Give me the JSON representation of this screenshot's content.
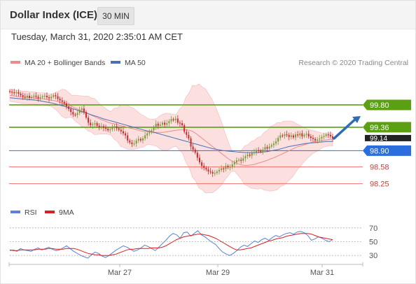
{
  "header": {
    "title": "Dollar Index (ICE)",
    "interval": "30 MIN",
    "timestamp": "Tuesday, March 31, 2020 2:35:01 AM CET"
  },
  "legend": {
    "ma20": "MA 20 + Bollinger Bands",
    "ma50": "MA 50",
    "credit": "Research © 2020 Trading Central",
    "rsi": "RSI",
    "ma9": "9MA"
  },
  "colors": {
    "up": "#7a9a3a",
    "down": "#cc2a2a",
    "ma20": "#f08a8a",
    "ma50": "#4a6fb3",
    "band": "#fbd6d6",
    "green_level": "#5aa012",
    "blue_level": "#2b6fde",
    "red_level": "#f07070",
    "last_price": "#222222",
    "arrow": "#2e6db5",
    "rsi": "#5b82d8",
    "ma9": "#d91f1f"
  },
  "chart_data": [
    {
      "type": "candlestick",
      "ylim": [
        97.9,
        100.35
      ],
      "price_levels": [
        {
          "label": "99.80",
          "value": 99.8,
          "kind": "resistance",
          "color": "#5aa012"
        },
        {
          "label": "99.36",
          "value": 99.36,
          "kind": "resistance",
          "color": "#5aa012"
        },
        {
          "label": "99.14",
          "value": 99.14,
          "kind": "last",
          "color": "#222222"
        },
        {
          "label": "98.90",
          "value": 98.9,
          "kind": "pivot",
          "color": "#2b6fde"
        },
        {
          "label": "98.58",
          "value": 98.58,
          "kind": "support",
          "color": "#f07070"
        },
        {
          "label": "98.25",
          "value": 98.25,
          "kind": "support",
          "color": "#f07070"
        }
      ],
      "close": [
        100.06,
        100.05,
        100.03,
        100.05,
        100.02,
        99.99,
        99.96,
        99.95,
        99.98,
        99.94,
        99.96,
        99.98,
        99.96,
        99.93,
        99.95,
        99.97,
        99.98,
        99.95,
        99.93,
        99.96,
        99.99,
        99.97,
        99.92,
        99.89,
        99.86,
        99.83,
        99.77,
        99.72,
        99.66,
        99.61,
        99.6,
        99.64,
        99.7,
        99.73,
        99.66,
        99.55,
        99.45,
        99.4,
        99.42,
        99.44,
        99.39,
        99.36,
        99.38,
        99.35,
        99.33,
        99.3,
        99.32,
        99.35,
        99.38,
        99.34,
        99.31,
        99.28,
        99.24,
        99.2,
        99.1,
        99.06,
        99.03,
        99.04,
        99.1,
        99.13,
        99.1,
        99.14,
        99.2,
        99.24,
        99.26,
        99.3,
        99.35,
        99.43,
        99.39,
        99.41,
        99.45,
        99.41,
        99.44,
        99.48,
        99.52,
        99.5,
        99.53,
        99.45,
        99.44,
        99.4,
        99.27,
        99.21,
        99.14,
        98.98,
        98.92,
        98.86,
        98.76,
        98.67,
        98.6,
        98.56,
        98.53,
        98.49,
        98.48,
        98.45,
        98.46,
        98.49,
        98.52,
        98.55,
        98.54,
        98.6,
        98.57,
        98.58,
        98.63,
        98.67,
        98.71,
        98.72,
        98.7,
        98.75,
        98.79,
        98.82,
        98.8,
        98.85,
        98.87,
        98.91,
        98.9,
        98.88,
        98.92,
        98.97,
        98.94,
        98.98,
        99.01,
        99.04,
        99.08,
        99.15,
        99.2,
        99.19,
        99.22,
        99.21,
        99.17,
        99.2,
        99.16,
        99.22,
        99.2,
        99.24,
        99.18,
        99.21,
        99.23,
        99.18,
        99.15,
        99.13,
        99.1,
        99.12,
        99.14,
        99.17,
        99.19,
        99.22,
        99.21,
        99.18,
        99.14
      ],
      "ma20": [
        99.99,
        99.98,
        99.97,
        99.96,
        99.95,
        99.95,
        99.94,
        99.94,
        99.93,
        99.92,
        99.92,
        99.91,
        99.9,
        99.89,
        99.88,
        99.86,
        99.84,
        99.82,
        99.8,
        99.77,
        99.74,
        99.71,
        99.68,
        99.66,
        99.63,
        99.6,
        99.57,
        99.54,
        99.51,
        99.49,
        99.46,
        99.44,
        99.43,
        99.41,
        99.39,
        99.38,
        99.36,
        99.34,
        99.33,
        99.31,
        99.29,
        99.28,
        99.28,
        99.27,
        99.26,
        99.26,
        99.26,
        99.26,
        99.27,
        99.28,
        99.29,
        99.3,
        99.31,
        99.31,
        99.31,
        99.3,
        99.28,
        99.24,
        99.19,
        99.14,
        99.09,
        99.04,
        98.99,
        98.94,
        98.89,
        98.84,
        98.79,
        98.74,
        98.7,
        98.67,
        98.64,
        98.62,
        98.61,
        98.61,
        98.62,
        98.63,
        98.65,
        98.67,
        98.69,
        98.71,
        98.74,
        98.76,
        98.79,
        98.82,
        98.85,
        98.88,
        98.91,
        98.94,
        98.97,
        98.99,
        99.01,
        99.03,
        99.05,
        99.07,
        99.08,
        99.09,
        99.1,
        99.11,
        99.12,
        99.12
      ],
      "ma20_start_index": 0,
      "ma50": [
        99.94,
        99.93,
        99.92,
        99.91,
        99.9,
        99.89,
        99.87,
        99.85,
        99.83,
        99.8,
        99.77,
        99.74,
        99.71,
        99.67,
        99.64,
        99.6,
        99.57,
        99.53,
        99.5,
        99.47,
        99.44,
        99.41,
        99.38,
        99.35,
        99.32,
        99.29,
        99.27,
        99.24,
        99.21,
        99.18,
        99.15,
        99.12,
        99.09,
        99.06,
        99.03,
        99.0,
        98.97,
        98.94,
        98.92,
        98.9,
        98.89,
        98.88,
        98.87,
        98.86,
        98.86,
        98.86,
        98.87,
        98.88,
        98.9,
        98.92,
        98.95,
        98.98,
        99.0,
        99.02,
        99.04,
        99.05,
        99.06,
        99.07,
        99.08,
        99.08
      ],
      "xlabels": [
        "Mar 27",
        "Mar 29",
        "Mar 31"
      ]
    },
    {
      "type": "line",
      "title": "RSI",
      "ylim": [
        20,
        80
      ],
      "yticks": [
        70,
        50,
        30
      ],
      "rsi": [
        37,
        38,
        36,
        40,
        38,
        37,
        36,
        39,
        41,
        38,
        40,
        42,
        39,
        37,
        38,
        41,
        44,
        40,
        36,
        33,
        30,
        28,
        26,
        31,
        35,
        33,
        29,
        27,
        30,
        34,
        38,
        41,
        44,
        42,
        39,
        36,
        38,
        41,
        45,
        43,
        40,
        37,
        42,
        47,
        52,
        58,
        62,
        60,
        55,
        63,
        64,
        58,
        62,
        66,
        60,
        57,
        53,
        49,
        46,
        40,
        35,
        32,
        30,
        33,
        37,
        42,
        45,
        43,
        47,
        51,
        49,
        53,
        55,
        52,
        56,
        59,
        57,
        60,
        62,
        63,
        61,
        64,
        65,
        63,
        59,
        52,
        54,
        57,
        55,
        52,
        50,
        53
      ],
      "ma9": [
        38,
        37,
        37,
        38,
        38,
        38,
        38,
        38,
        39,
        39,
        39,
        40,
        40,
        39,
        39,
        39,
        40,
        40,
        40,
        39,
        37,
        35,
        33,
        32,
        31,
        31,
        30,
        30,
        30,
        31,
        32,
        34,
        36,
        38,
        39,
        39,
        40,
        40,
        40,
        40,
        41,
        41,
        41,
        42,
        44,
        47,
        50,
        53,
        55,
        57,
        58,
        59,
        60,
        61,
        61,
        60,
        59,
        57,
        55,
        52,
        49,
        46,
        43,
        40,
        38,
        38,
        39,
        40,
        41,
        43,
        45,
        47,
        49,
        51,
        52,
        54,
        55,
        56,
        58,
        59,
        60,
        61,
        62,
        62,
        62,
        61,
        59,
        57,
        56,
        55,
        54,
        53
      ]
    }
  ]
}
